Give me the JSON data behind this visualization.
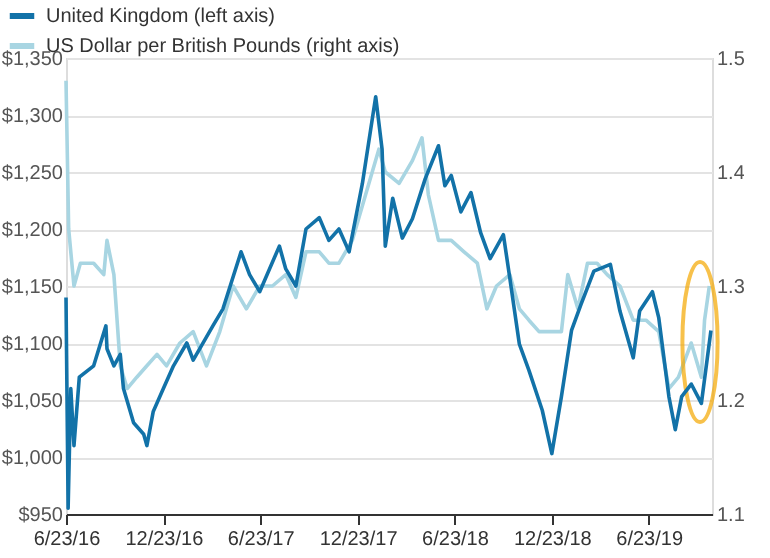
{
  "chart_data": {
    "type": "line",
    "x": [
      "2016-06-23",
      "2016-06-27",
      "2016-07-02",
      "2016-07-08",
      "2016-07-18",
      "2016-08-14",
      "2016-09-06",
      "2016-09-08",
      "2016-09-21",
      "2016-10-03",
      "2016-10-09",
      "2016-10-28",
      "2016-11-16",
      "2016-11-22",
      "2016-12-04",
      "2016-12-23",
      "2017-01-11",
      "2017-02-05",
      "2017-02-17",
      "2017-03-26",
      "2017-04-14",
      "2017-05-18",
      "2017-06-03",
      "2017-06-22",
      "2017-07-29",
      "2017-08-10",
      "2017-08-29",
      "2017-09-17",
      "2017-10-12",
      "2017-10-30",
      "2017-11-18",
      "2017-12-07",
      "2018-01-01",
      "2018-01-26",
      "2018-02-07",
      "2018-02-13",
      "2018-02-27",
      "2018-03-17",
      "2018-04-05",
      "2018-04-29",
      "2018-05-24",
      "2018-06-05",
      "2018-06-17",
      "2018-07-05",
      "2018-07-24",
      "2018-08-11",
      "2018-08-29",
      "2018-09-23",
      "2018-10-05",
      "2018-10-23",
      "2018-11-10",
      "2018-12-05",
      "2018-12-23",
      "2019-01-10",
      "2019-01-29",
      "2019-02-16",
      "2019-03-12",
      "2019-04-12",
      "2019-04-30",
      "2019-05-25",
      "2019-06-06",
      "2019-06-30",
      "2019-07-12",
      "2019-07-31",
      "2019-08-12",
      "2019-08-24",
      "2019-09-11",
      "2019-09-30",
      "2019-10-18"
    ],
    "series": [
      {
        "name": "United Kingdom (left axis)",
        "color": "#1272a8",
        "values": [
          1140,
          955,
          1060,
          1010,
          1070,
          1080,
          1115,
          1095,
          1080,
          1090,
          1060,
          1030,
          1020,
          1010,
          1040,
          1060,
          1080,
          1100,
          1085,
          1115,
          1130,
          1180,
          1160,
          1145,
          1185,
          1165,
          1150,
          1200,
          1210,
          1190,
          1200,
          1180,
          1240,
          1316,
          1270,
          1185,
          1227,
          1192,
          1209,
          1244,
          1273,
          1238,
          1247,
          1215,
          1232,
          1197,
          1174,
          1195,
          1157,
          1099,
          1076,
          1041,
          1003,
          1053,
          1111,
          1134,
          1163,
          1169,
          1128,
          1087,
          1128,
          1145,
          1122,
          1053,
          1024,
          1053,
          1064,
          1047,
          1111
        ]
      },
      {
        "name": "US Dollar per British Pounds (right axis)",
        "color": "#a8d5e2",
        "axis": "y2",
        "x": [
          "2016-06-23",
          "2016-06-28",
          "2016-07-08",
          "2016-07-20",
          "2016-08-14",
          "2016-09-02",
          "2016-09-08",
          "2016-09-21",
          "2016-10-03",
          "2016-10-16",
          "2016-11-03",
          "2016-11-22",
          "2016-12-11",
          "2016-12-29",
          "2017-01-23",
          "2017-02-17",
          "2017-03-14",
          "2017-04-08",
          "2017-05-03",
          "2017-05-28",
          "2017-06-22",
          "2017-07-16",
          "2017-08-10",
          "2017-08-29",
          "2017-09-17",
          "2017-10-12",
          "2017-10-30",
          "2017-11-18",
          "2017-12-13",
          "2018-01-07",
          "2018-02-01",
          "2018-02-13",
          "2018-03-11",
          "2018-04-05",
          "2018-04-23",
          "2018-05-05",
          "2018-05-24",
          "2018-06-17",
          "2018-07-11",
          "2018-08-05",
          "2018-08-23",
          "2018-09-10",
          "2018-10-05",
          "2018-10-23",
          "2018-11-10",
          "2018-11-29",
          "2018-12-17",
          "2019-01-10",
          "2019-01-22",
          "2019-02-10",
          "2019-02-28",
          "2019-03-18",
          "2019-04-06",
          "2019-04-30",
          "2019-05-25",
          "2019-06-18",
          "2019-07-12",
          "2019-07-31",
          "2019-08-18",
          "2019-09-11",
          "2019-09-30",
          "2019-10-06",
          "2019-10-15"
        ],
        "values": [
          1.48,
          1.35,
          1.3,
          1.32,
          1.32,
          1.31,
          1.34,
          1.31,
          1.23,
          1.21,
          1.22,
          1.23,
          1.24,
          1.23,
          1.25,
          1.26,
          1.23,
          1.26,
          1.3,
          1.28,
          1.3,
          1.3,
          1.31,
          1.29,
          1.33,
          1.33,
          1.32,
          1.32,
          1.34,
          1.38,
          1.42,
          1.4,
          1.39,
          1.41,
          1.43,
          1.38,
          1.34,
          1.34,
          1.33,
          1.32,
          1.28,
          1.3,
          1.31,
          1.28,
          1.27,
          1.26,
          1.26,
          1.26,
          1.31,
          1.28,
          1.32,
          1.32,
          1.31,
          1.3,
          1.27,
          1.27,
          1.26,
          1.21,
          1.22,
          1.25,
          1.22,
          1.27,
          1.3
        ]
      }
    ],
    "xlim": [
      "2016-06-23",
      "2019-10-20"
    ],
    "xticks": [
      {
        "value": "2016-06-23",
        "label": "6/23/16"
      },
      {
        "value": "2016-12-23",
        "label": "12/23/16"
      },
      {
        "value": "2017-06-23",
        "label": "6/23/17"
      },
      {
        "value": "2017-12-23",
        "label": "12/23/17"
      },
      {
        "value": "2018-06-23",
        "label": "6/23/18"
      },
      {
        "value": "2018-12-23",
        "label": "12/23/18"
      },
      {
        "value": "2019-06-23",
        "label": "6/23/19"
      }
    ],
    "ylim": [
      950,
      1350
    ],
    "yticks": [
      {
        "value": 950,
        "label": "$950"
      },
      {
        "value": 1000,
        "label": "$1,000"
      },
      {
        "value": 1050,
        "label": "$1,050"
      },
      {
        "value": 1100,
        "label": "$1,100"
      },
      {
        "value": 1150,
        "label": "$1,150"
      },
      {
        "value": 1200,
        "label": "$1,200"
      },
      {
        "value": 1250,
        "label": "$1,250"
      },
      {
        "value": 1300,
        "label": "$1,300"
      },
      {
        "value": 1350,
        "label": "$1,350"
      }
    ],
    "y2lim": [
      1.1,
      1.5
    ],
    "y2ticks": [
      1.1,
      1.2,
      1.3,
      1.4,
      1.5
    ],
    "grid": "y",
    "legend": "top left",
    "line_style": "solid",
    "marker": "none"
  }
}
